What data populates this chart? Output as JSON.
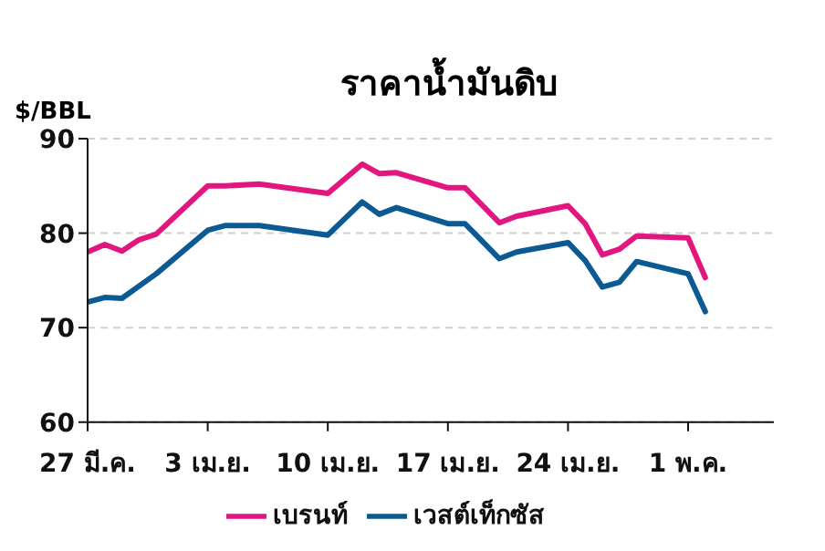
{
  "chart_data": {
    "type": "line",
    "title": "ราคาน้ำมันดิบ",
    "ylabel": "$/BBL",
    "xlim": [
      "--03-27",
      "--05-06"
    ],
    "xticks": [
      {
        "value": "--03-27",
        "label": "27 มี.ค."
      },
      {
        "value": "--04-03",
        "label": "3 เม.ย."
      },
      {
        "value": "--04-10",
        "label": "10 เม.ย."
      },
      {
        "value": "--04-17",
        "label": "17 เม.ย."
      },
      {
        "value": "--04-24",
        "label": "24 เม.ย."
      },
      {
        "value": "--05-01",
        "label": "1 พ.ค."
      }
    ],
    "ylim": [
      60,
      90
    ],
    "yticks": [
      60,
      70,
      80,
      90
    ],
    "grid": "y",
    "legend": "bottom",
    "marker": "none",
    "line_style": "solid",
    "series": [
      {
        "name": "เวสต์เท็กซัส",
        "color": "#0b5a94",
        "x": [
          "--03-27",
          "--03-28",
          "--03-29",
          "--03-31",
          "--04-03",
          "--04-04",
          "--04-06",
          "--04-10",
          "--04-12",
          "--04-13",
          "--04-14",
          "--04-17",
          "--04-18",
          "--04-20",
          "--04-21",
          "--04-24",
          "--04-25",
          "--04-26",
          "--04-27",
          "--04-28",
          "--05-01",
          "--05-02"
        ],
        "values": [
          72.7,
          73.2,
          73.1,
          75.7,
          80.3,
          80.8,
          80.8,
          79.8,
          83.3,
          82.0,
          82.7,
          81.0,
          81.0,
          77.3,
          78.0,
          79.0,
          77.1,
          74.3,
          74.8,
          77.0,
          75.7,
          71.7
        ]
      },
      {
        "name": "เบรนท์",
        "color": "#e2167f",
        "x": [
          "--03-27",
          "--03-28",
          "--03-29",
          "--03-30",
          "--03-31",
          "--04-03",
          "--04-04",
          "--04-06",
          "--04-10",
          "--04-12",
          "--04-13",
          "--04-14",
          "--04-17",
          "--04-18",
          "--04-20",
          "--04-21",
          "--04-24",
          "--04-25",
          "--04-26",
          "--04-27",
          "--04-28",
          "--05-01",
          "--05-02"
        ],
        "values": [
          78.0,
          78.8,
          78.1,
          79.3,
          79.9,
          85.0,
          85.0,
          85.2,
          84.2,
          87.3,
          86.3,
          86.4,
          84.8,
          84.8,
          81.1,
          81.8,
          82.9,
          81.0,
          77.7,
          78.3,
          79.7,
          79.5,
          75.3
        ]
      }
    ]
  }
}
